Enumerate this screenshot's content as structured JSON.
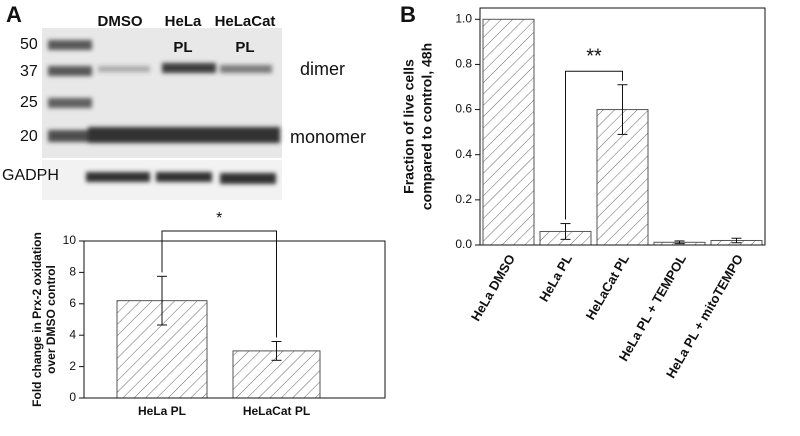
{
  "blot": {
    "panel": "A",
    "markers": [
      50,
      37,
      25,
      20
    ],
    "lanes": [
      [
        "DMSO"
      ],
      [
        "HeLa",
        "PL"
      ],
      [
        "HeLaCat",
        "PL"
      ]
    ],
    "band_labels": [
      "dimer",
      "monomer"
    ],
    "loading_control": "GADPH"
  },
  "chart_data": [
    {
      "type": "bar",
      "categories": [
        "HeLa PL",
        "HeLaCat PL"
      ],
      "values": [
        6.2,
        3.0
      ],
      "errors": [
        1.55,
        0.6
      ],
      "ylabel": [
        "Fold change in Prx-2 oxidation",
        "over DMSO control"
      ],
      "ylim": [
        0,
        10
      ],
      "yticks": [
        0,
        2,
        4,
        6,
        8,
        10
      ],
      "annotation": "*",
      "color": "#555555"
    },
    {
      "type": "bar",
      "panel": "B",
      "categories": [
        "HeLa DMSO",
        "HeLa PL",
        "HeLaCat PL",
        "HeLa PL + TEMPOL",
        "HeLa PL + mitoTEMPO"
      ],
      "values": [
        1.0,
        0.06,
        0.6,
        0.012,
        0.02
      ],
      "errors": [
        0,
        0.035,
        0.11,
        0.006,
        0.01
      ],
      "ylabel": [
        "Fraction of live cells",
        "compared to control, 48h"
      ],
      "ylim": [
        0,
        1.05
      ],
      "yticks": [
        {
          "value": 0,
          "label": "0.0"
        },
        0.2,
        0.4,
        0.6,
        0.8,
        {
          "value": 1,
          "label": "1.0"
        }
      ],
      "annotation": "**",
      "color": "#555555"
    }
  ]
}
